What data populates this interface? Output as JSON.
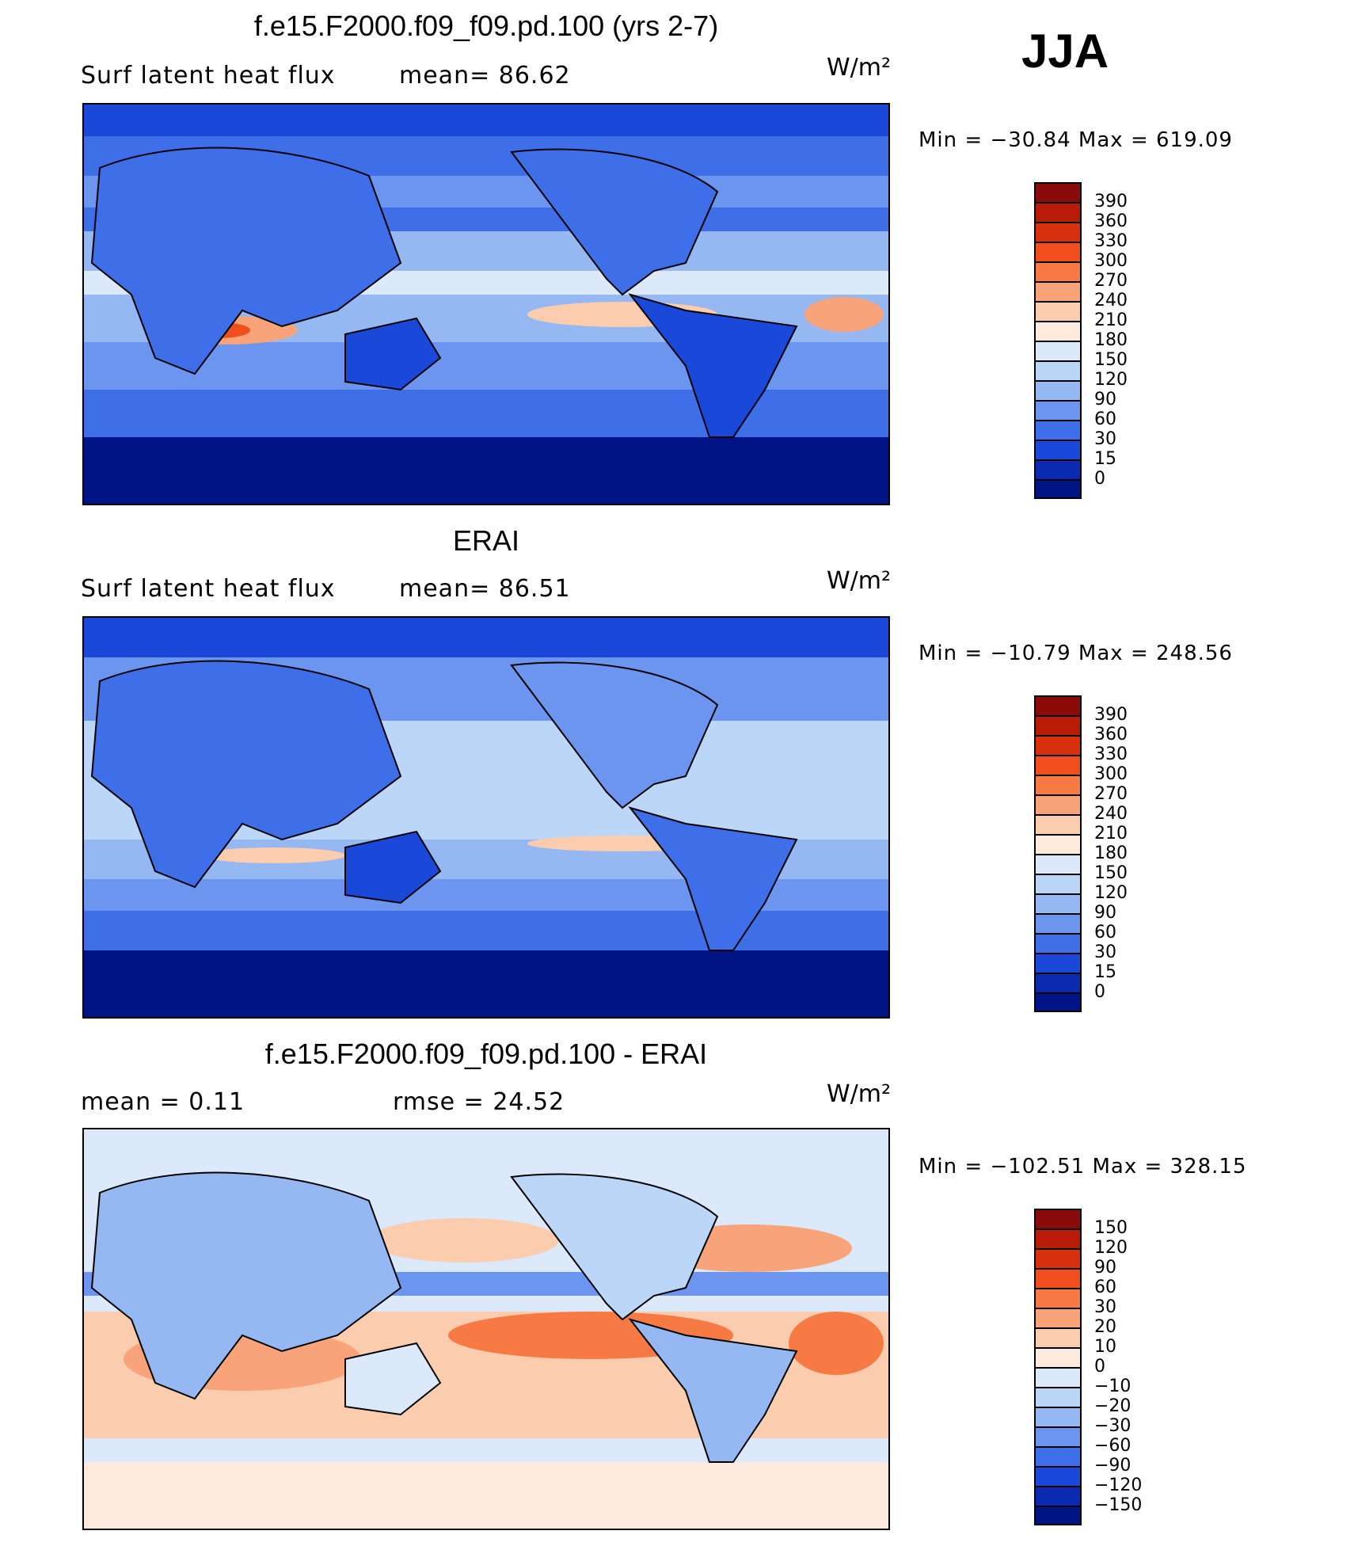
{
  "season": "JJA",
  "panels": [
    {
      "title": "f.e15.F2000.f09_f09.pd.100 (yrs 2-7)",
      "left_stat": "Surf  latent  heat  flux",
      "right_stat": "mean=   86.62",
      "units": "W/m²",
      "minmax": "Min  =  −30.84  Max  =  619.09",
      "palette": "abs"
    },
    {
      "title": "ERAI",
      "left_stat": "Surf  latent  heat  flux",
      "right_stat": "mean=   86.51",
      "units": "W/m²",
      "minmax": "Min  =  −10.79  Max  =  248.56",
      "palette": "abs"
    },
    {
      "title": "f.e15.F2000.f09_f09.pd.100 - ERAI",
      "left_stat": "mean  =     0.11",
      "right_stat": "rmse  =    24.52",
      "units": "W/m²",
      "minmax": "Min  =  −102.51  Max  =  328.15",
      "palette": "diff"
    }
  ],
  "colorbars": {
    "abs": {
      "labels": [
        "390",
        "360",
        "330",
        "300",
        "270",
        "240",
        "210",
        "180",
        "150",
        "120",
        "90",
        "60",
        "30",
        "15",
        "0"
      ],
      "colors": [
        "#8b0a0a",
        "#b81c08",
        "#d6300c",
        "#f04f1d",
        "#f77a44",
        "#f9a37a",
        "#fbccae",
        "#fdeadc",
        "#dbe9fb",
        "#bcd6f7",
        "#95b8f3",
        "#6b95ee",
        "#3e6ee8",
        "#1a48d8",
        "#0c2ab0",
        "#001486"
      ]
    },
    "diff": {
      "labels": [
        "150",
        "120",
        "90",
        "60",
        "30",
        "20",
        "10",
        "0",
        "−10",
        "−20",
        "−30",
        "−60",
        "−90",
        "−120",
        "−150"
      ],
      "colors": [
        "#8b0a0a",
        "#b81c08",
        "#d6300c",
        "#f04f1d",
        "#f77a44",
        "#f9a37a",
        "#fbccae",
        "#fdeadc",
        "#dbe9fb",
        "#bcd6f7",
        "#95b8f3",
        "#6b95ee",
        "#3e6ee8",
        "#1a48d8",
        "#0c2ab0",
        "#001486"
      ]
    }
  }
}
